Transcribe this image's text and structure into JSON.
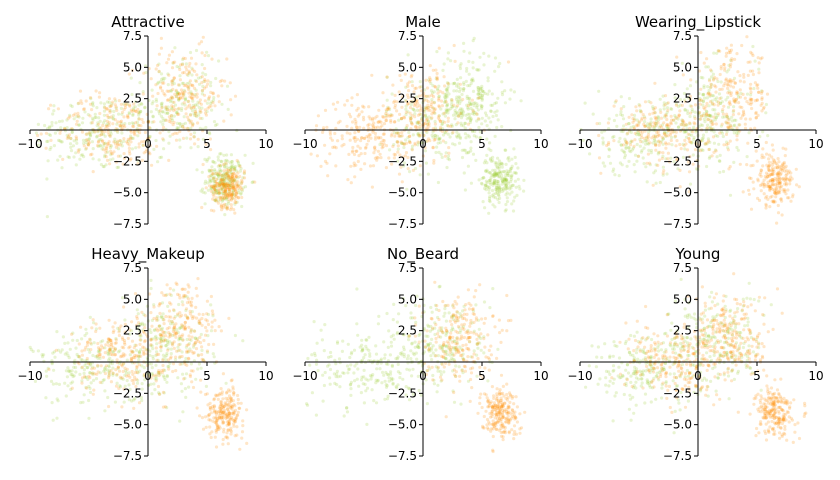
{
  "colors": {
    "class_a": "#9acd32",
    "class_b": "#ff8c00"
  },
  "chart_data": [
    {
      "type": "scatter",
      "title": "Attractive",
      "xlim": [
        -10,
        10
      ],
      "ylim": [
        -7.5,
        7.5
      ],
      "xticks": [
        "−10",
        "0",
        "5",
        "10"
      ],
      "yticks": [
        "7.5",
        "5.0",
        "2.5",
        "−2.5",
        "−5.0",
        "−7.5"
      ],
      "series": [
        {
          "color": "#9acd32",
          "clusters": [
            {
              "cx": -4.5,
              "cy": -0.2,
              "sx": 2.6,
              "sy": 1.6
            },
            {
              "cx": 2.5,
              "cy": 2.0,
              "sx": 1.8,
              "sy": 1.8
            },
            {
              "cx": 6.5,
              "cy": -4.0,
              "sx": 0.8,
              "sy": 1.0
            }
          ]
        },
        {
          "color": "#ff8c00",
          "clusters": [
            {
              "cx": 3.0,
              "cy": 2.5,
              "sx": 1.8,
              "sy": 2.0
            },
            {
              "cx": -3.0,
              "cy": 0.0,
              "sx": 2.3,
              "sy": 1.5
            },
            {
              "cx": 6.8,
              "cy": -4.5,
              "sx": 0.7,
              "sy": 0.8
            }
          ]
        }
      ]
    },
    {
      "type": "scatter",
      "title": "Male",
      "xlim": [
        -10,
        10
      ],
      "ylim": [
        -7.5,
        7.5
      ],
      "xticks": [
        "−10",
        "0",
        "5",
        "10"
      ],
      "yticks": [
        "7.5",
        "5.0",
        "2.5",
        "−2.5",
        "−5.0",
        "−7.5"
      ],
      "series": [
        {
          "color": "#9acd32",
          "clusters": [
            {
              "cx": 4.0,
              "cy": 2.5,
              "sx": 1.5,
              "sy": 2.0
            },
            {
              "cx": 6.5,
              "cy": -4.0,
              "sx": 0.8,
              "sy": 1.0
            },
            {
              "cx": 1.0,
              "cy": 0.5,
              "sx": 2.0,
              "sy": 2.0
            }
          ]
        },
        {
          "color": "#ff8c00",
          "clusters": [
            {
              "cx": -4.5,
              "cy": -0.5,
              "sx": 2.4,
              "sy": 1.4
            },
            {
              "cx": 0.0,
              "cy": 1.5,
              "sx": 2.0,
              "sy": 1.8
            }
          ]
        }
      ]
    },
    {
      "type": "scatter",
      "title": "Wearing_Lipstick",
      "xlim": [
        -10,
        10
      ],
      "ylim": [
        -7.5,
        7.5
      ],
      "xticks": [
        "−10",
        "0",
        "5",
        "10"
      ],
      "yticks": [
        "7.5",
        "5.0",
        "2.5",
        "−2.5",
        "−5.0",
        "−7.5"
      ],
      "series": [
        {
          "color": "#9acd32",
          "clusters": [
            {
              "cx": -4.5,
              "cy": -0.5,
              "sx": 2.5,
              "sy": 1.5
            },
            {
              "cx": 1.0,
              "cy": 1.0,
              "sx": 2.0,
              "sy": 2.0
            }
          ]
        },
        {
          "color": "#ff8c00",
          "clusters": [
            {
              "cx": 3.0,
              "cy": 2.5,
              "sx": 1.6,
              "sy": 2.0
            },
            {
              "cx": 6.5,
              "cy": -4.0,
              "sx": 0.8,
              "sy": 1.0
            },
            {
              "cx": -3.0,
              "cy": 0.0,
              "sx": 2.2,
              "sy": 1.4
            }
          ]
        }
      ]
    },
    {
      "type": "scatter",
      "title": "Heavy_Makeup",
      "xlim": [
        -10,
        10
      ],
      "ylim": [
        -7.5,
        7.5
      ],
      "xticks": [
        "−10",
        "0",
        "5",
        "10"
      ],
      "yticks": [
        "7.5",
        "5.0",
        "2.5",
        "−2.5",
        "−5.0",
        "−7.5"
      ],
      "series": [
        {
          "color": "#9acd32",
          "clusters": [
            {
              "cx": -4.5,
              "cy": -0.5,
              "sx": 2.5,
              "sy": 1.5
            },
            {
              "cx": 1.5,
              "cy": 1.0,
              "sx": 2.0,
              "sy": 2.0
            }
          ]
        },
        {
          "color": "#ff8c00",
          "clusters": [
            {
              "cx": 3.0,
              "cy": 2.5,
              "sx": 1.6,
              "sy": 2.0
            },
            {
              "cx": 6.5,
              "cy": -4.0,
              "sx": 0.8,
              "sy": 1.0
            },
            {
              "cx": -2.5,
              "cy": 0.5,
              "sx": 2.0,
              "sy": 1.5
            }
          ]
        }
      ]
    },
    {
      "type": "scatter",
      "title": "No_Beard",
      "xlim": [
        -10,
        10
      ],
      "ylim": [
        -7.5,
        7.5
      ],
      "xticks": [
        "−10",
        "0",
        "5",
        "10"
      ],
      "yticks": [
        "7.5",
        "5.0",
        "2.5",
        "−2.5",
        "−5.0",
        "−7.5"
      ],
      "series": [
        {
          "color": "#9acd32",
          "clusters": [
            {
              "cx": -4.5,
              "cy": -0.5,
              "sx": 2.6,
              "sy": 1.6
            },
            {
              "cx": 1.5,
              "cy": 1.5,
              "sx": 2.2,
              "sy": 2.0
            }
          ]
        },
        {
          "color": "#ff8c00",
          "clusters": [
            {
              "cx": 3.0,
              "cy": 2.0,
              "sx": 1.5,
              "sy": 1.8
            },
            {
              "cx": 6.5,
              "cy": -4.0,
              "sx": 0.8,
              "sy": 1.0
            }
          ]
        }
      ]
    },
    {
      "type": "scatter",
      "title": "Young",
      "xlim": [
        -10,
        10
      ],
      "ylim": [
        -7.5,
        7.5
      ],
      "xticks": [
        "−10",
        "0",
        "5",
        "10"
      ],
      "yticks": [
        "7.5",
        "5.0",
        "2.5",
        "−2.5",
        "−5.0",
        "−7.5"
      ],
      "series": [
        {
          "color": "#9acd32",
          "clusters": [
            {
              "cx": -4.5,
              "cy": -0.5,
              "sx": 2.5,
              "sy": 1.5
            },
            {
              "cx": 1.5,
              "cy": 1.5,
              "sx": 2.0,
              "sy": 2.0
            }
          ]
        },
        {
          "color": "#ff8c00",
          "clusters": [
            {
              "cx": 3.0,
              "cy": 2.0,
              "sx": 1.6,
              "sy": 1.8
            },
            {
              "cx": 6.5,
              "cy": -4.0,
              "sx": 0.8,
              "sy": 1.0
            },
            {
              "cx": -2.0,
              "cy": 0.0,
              "sx": 2.0,
              "sy": 1.4
            }
          ]
        }
      ]
    }
  ]
}
